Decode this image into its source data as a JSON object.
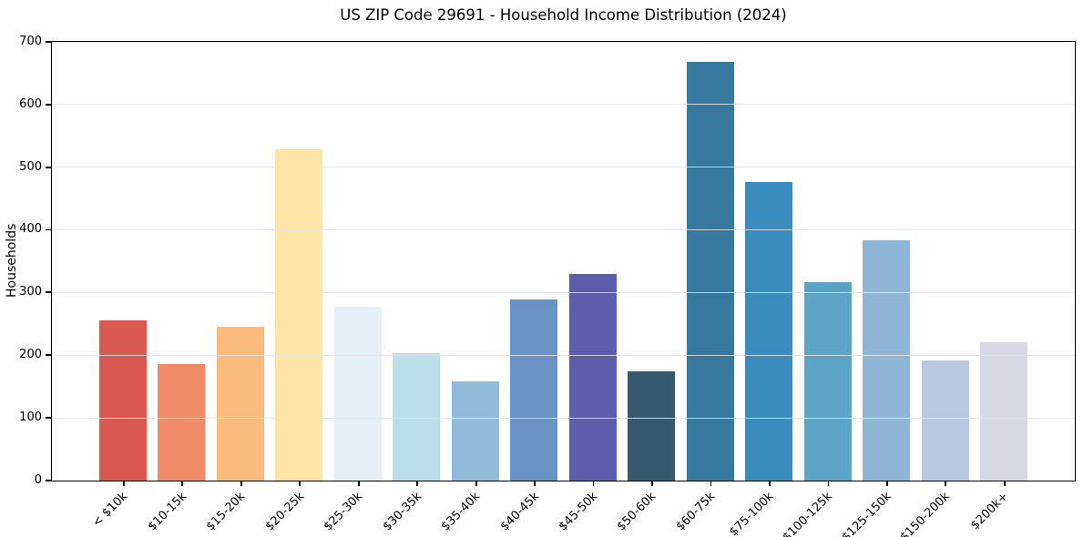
{
  "chart_data": {
    "type": "bar",
    "title": "US ZIP Code 29691 - Household Income Distribution (2024)",
    "xlabel": "",
    "ylabel": "Households",
    "categories": [
      "< $10k",
      "$10-15k",
      "$15-20k",
      "$20-25k",
      "$25-30k",
      "$30-35k",
      "$35-40k",
      "$40-45k",
      "$45-50k",
      "$50-60k",
      "$60-75k",
      "$75-100k",
      "$100-125k",
      "$125-150k",
      "$150-200k",
      "$200k+"
    ],
    "values": [
      255,
      186,
      246,
      528,
      278,
      203,
      158,
      289,
      329,
      174,
      668,
      477,
      317,
      384,
      192,
      221
    ],
    "bar_colors": [
      "#d9584f",
      "#f08a68",
      "#fbbb7c",
      "#fde5a6",
      "#e4f0f6",
      "#bcdeea",
      "#90bbdb",
      "#6992c5",
      "#5c5dac",
      "#35596c",
      "#36789e",
      "#3a8cbe",
      "#5ba4c6",
      "#8fb6d6",
      "#b9c9e0",
      "#d7d8e6"
    ],
    "ylim": [
      0,
      700
    ],
    "yticks": [
      0,
      100,
      200,
      300,
      400,
      500,
      600,
      700
    ],
    "grid": "horizontal",
    "legend": "none",
    "background_color": "#ffffff",
    "gridline_color": "#e4e4e4",
    "spine_color": "#000000",
    "xtick_rotation": 45
  }
}
